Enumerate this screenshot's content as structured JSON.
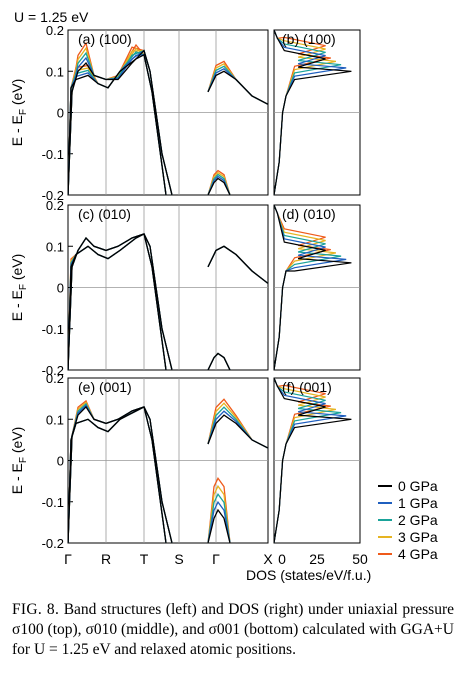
{
  "figure": {
    "header": "U = 1.25 eV",
    "ylabel": "E - E",
    "ylabel_sub": "F",
    "ylabel_unit": " (eV)",
    "xlabel_dos": "DOS (states/eV/f.u.)",
    "kpoint_labels": [
      "Γ",
      "R",
      "T",
      "S",
      "Γ",
      "X"
    ],
    "dos_tick_labels": [
      "0",
      "25",
      "50"
    ],
    "y_tick_labels": [
      "0.2",
      "0.1",
      "0",
      "-0.1",
      "-0.2"
    ],
    "panels": [
      {
        "band_label": "(a) (100)",
        "dos_label": "(b) (100)"
      },
      {
        "band_label": "(c) (010)",
        "dos_label": "(d) (010)"
      },
      {
        "band_label": "(e) (001)",
        "dos_label": "(f) (001)"
      }
    ],
    "legend": [
      {
        "label": "0 GPa",
        "color": "#000000"
      },
      {
        "label": "1 GPa",
        "color": "#1f5fbf"
      },
      {
        "label": "2 GPa",
        "color": "#1aa39a"
      },
      {
        "label": "3 GPa",
        "color": "#e6b422"
      },
      {
        "label": "4 GPa",
        "color": "#ef5a1a"
      }
    ]
  },
  "caption": {
    "label": "FIG. 8.",
    "text": "Band structures (left) and DOS (right) under uniaxial pressure σ100 (top), σ010 (middle), and σ001 (bottom) calculated with GGA+U for U = 1.25 eV and relaxed atomic positions."
  }
}
